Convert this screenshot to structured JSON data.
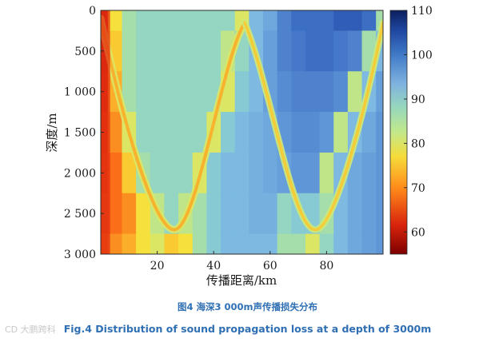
{
  "chart_data": {
    "type": "heatmap",
    "xlabel": "传播距离/km",
    "ylabel": "深度/m",
    "xlim": [
      0,
      100
    ],
    "ylim": [
      0,
      3000
    ],
    "y_inverted": true,
    "x_ticks": [
      20,
      40,
      60,
      80
    ],
    "y_ticks": [
      0,
      500,
      1000,
      1500,
      2000,
      2500,
      3000
    ],
    "y_tick_labels": [
      "0",
      "500",
      "1 000",
      "1 500",
      "2 000",
      "2 500",
      "3 000"
    ],
    "colorbar": {
      "min": 55,
      "max": 110,
      "ticks": [
        60,
        70,
        80,
        90,
        100,
        110
      ],
      "colormap": "jet (reversed)",
      "label": ""
    },
    "value_description": "Sound propagation loss (dB); estimated from color",
    "features": {
      "near_source_zone": {
        "x_range_km": [
          0,
          5
        ],
        "loss_dB": [
          60,
          70
        ]
      },
      "first_convergence_zone_km": 26,
      "second_convergence_zone_km": 76,
      "ray_turning_depth_m": 2700,
      "surface_reflection_km": 51,
      "background_loss_dB": {
        "first_zone": 86,
        "second_zone": 92,
        "far_shadow": 98
      }
    },
    "grid": {
      "x_km": [
        0,
        5,
        10,
        15,
        20,
        25,
        30,
        35,
        40,
        45,
        50,
        55,
        60,
        65,
        70,
        75,
        80,
        85,
        90,
        95,
        100
      ],
      "depth_m": [
        0,
        500,
        1000,
        1500,
        2000,
        2500,
        3000
      ],
      "loss_dB": [
        [
          62,
          78,
          84,
          86,
          86,
          86,
          86,
          86,
          86,
          86,
          80,
          90,
          92,
          96,
          98,
          98,
          98,
          100,
          100,
          98,
          84
        ],
        [
          62,
          76,
          84,
          86,
          86,
          86,
          86,
          86,
          86,
          82,
          86,
          90,
          93,
          96,
          97,
          98,
          98,
          97,
          96,
          84,
          90
        ],
        [
          64,
          74,
          84,
          86,
          86,
          86,
          86,
          86,
          86,
          80,
          88,
          90,
          93,
          95,
          96,
          96,
          96,
          95,
          82,
          90,
          93
        ],
        [
          66,
          72,
          80,
          86,
          86,
          86,
          86,
          86,
          80,
          88,
          90,
          91,
          92,
          94,
          95,
          95,
          94,
          82,
          90,
          92,
          94
        ],
        [
          67,
          70,
          76,
          84,
          86,
          86,
          86,
          80,
          88,
          90,
          90,
          91,
          92,
          93,
          94,
          94,
          82,
          90,
          92,
          93,
          94
        ],
        [
          68,
          70,
          72,
          78,
          82,
          86,
          82,
          84,
          88,
          90,
          90,
          91,
          91,
          86,
          88,
          88,
          84,
          90,
          92,
          93,
          94
        ],
        [
          70,
          72,
          74,
          78,
          80,
          76,
          78,
          84,
          88,
          90,
          90,
          90,
          90,
          84,
          84,
          80,
          86,
          90,
          92,
          93,
          94
        ]
      ]
    }
  },
  "caption": {
    "zh": "图4 海深3 000m声传播损失分布",
    "en": "Fig.4 Distribution of sound propagation loss at a depth of 3000m"
  },
  "watermark": "CD 大鹏跨科"
}
